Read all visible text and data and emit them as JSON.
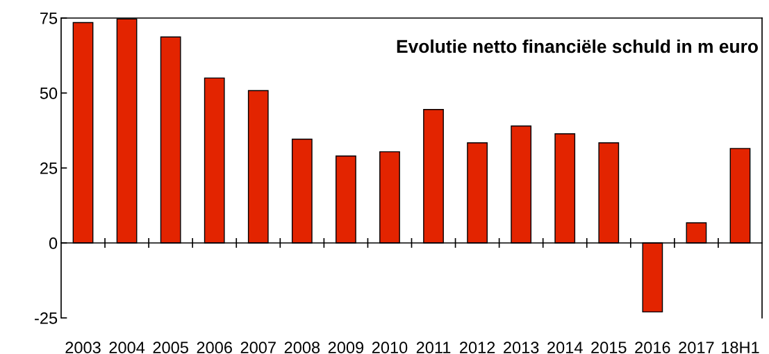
{
  "chart_data": {
    "type": "bar",
    "title": "Evolutie netto financiële schuld in m euro",
    "categories": [
      "2003",
      "2004",
      "2005",
      "2006",
      "2007",
      "2008",
      "2009",
      "2010",
      "2011",
      "2012",
      "2013",
      "2014",
      "2015",
      "2016",
      "2017",
      "18H1"
    ],
    "values": [
      73.5,
      74.7,
      68.7,
      55,
      50.8,
      34.6,
      29,
      30.4,
      44.5,
      33.4,
      39,
      36.4,
      33.4,
      -23,
      6.7,
      31.5
    ],
    "color": "#e32400",
    "ylim": [
      -25,
      75
    ],
    "yticks": [
      -25,
      0,
      25,
      50,
      75
    ],
    "legend": false
  }
}
